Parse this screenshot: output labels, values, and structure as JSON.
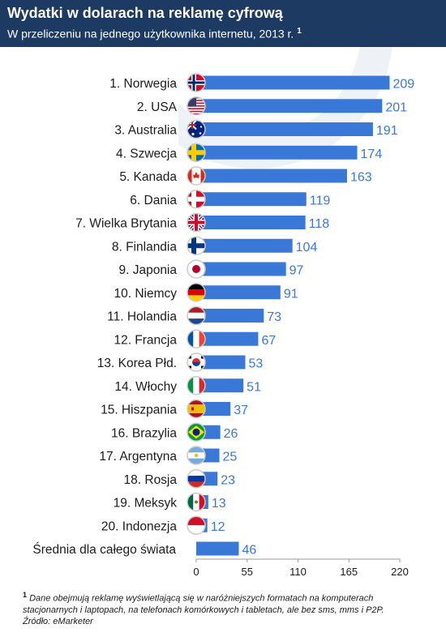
{
  "header": {
    "title": "Wydatki w dolarach na reklamę cyfrową",
    "subtitle": "W przeliczeniu na jednego użytkownika internetu, 2013 r.",
    "subtitle_note": "1"
  },
  "footnote": {
    "marker": "1",
    "line1": "Dane obejmują reklamę wyświetlającą się w naróżniejszych formatach na komputerach",
    "line2": "stacjonarnych i laptopach, na telefonach komórkowych i tabletach, ale bez sms, mms i P2P.",
    "line3": "Źródło: eMarketer"
  },
  "colors": {
    "header_bg": "#1d3a63",
    "bar": "#3a78d8",
    "value_label": "#3a78d8",
    "axis": "#9a9a9a"
  },
  "chart_data": {
    "type": "bar",
    "orientation": "horizontal",
    "title": "Wydatki w dolarach na reklamę cyfrową",
    "subtitle": "W przeliczeniu na jednego użytkownika internetu, 2013 r.",
    "xlim": [
      0,
      220
    ],
    "xticks": [
      "0",
      "55",
      "110",
      "165",
      "220"
    ],
    "grid": false,
    "categories": [
      "1. Norwegia",
      "2. USA",
      "3. Australia",
      "4. Szwecja",
      "5. Kanada",
      "6. Dania",
      "7. Wielka Brytania",
      "8. Finlandia",
      "9. Japonia",
      "10. Niemcy",
      "11. Holandia",
      "12. Francja",
      "13. Korea Płd.",
      "14. Włochy",
      "15. Hiszpania",
      "16. Brazylia",
      "17. Argentyna",
      "18. Rosja",
      "19. Meksyk",
      "20. Indonezja",
      "Średnia dla całego świata"
    ],
    "values": [
      209,
      201,
      191,
      174,
      163,
      119,
      118,
      104,
      97,
      91,
      73,
      67,
      53,
      51,
      37,
      26,
      25,
      23,
      13,
      12,
      46
    ],
    "value_labels": [
      "209",
      "201",
      "191",
      "174",
      "163",
      "119",
      "118",
      "104",
      "97",
      "91",
      "73",
      "67",
      "53",
      "51",
      "37",
      "26",
      "25",
      "23",
      "13",
      "12",
      "46"
    ],
    "flags": [
      "norway-flag-icon",
      "usa-flag-icon",
      "australia-flag-icon",
      "sweden-flag-icon",
      "canada-flag-icon",
      "denmark-flag-icon",
      "uk-flag-icon",
      "finland-flag-icon",
      "japan-flag-icon",
      "germany-flag-icon",
      "netherlands-flag-icon",
      "france-flag-icon",
      "south-korea-flag-icon",
      "italy-flag-icon",
      "spain-flag-icon",
      "brazil-flag-icon",
      "argentina-flag-icon",
      "russia-flag-icon",
      "mexico-flag-icon",
      "indonesia-flag-icon",
      ""
    ]
  }
}
